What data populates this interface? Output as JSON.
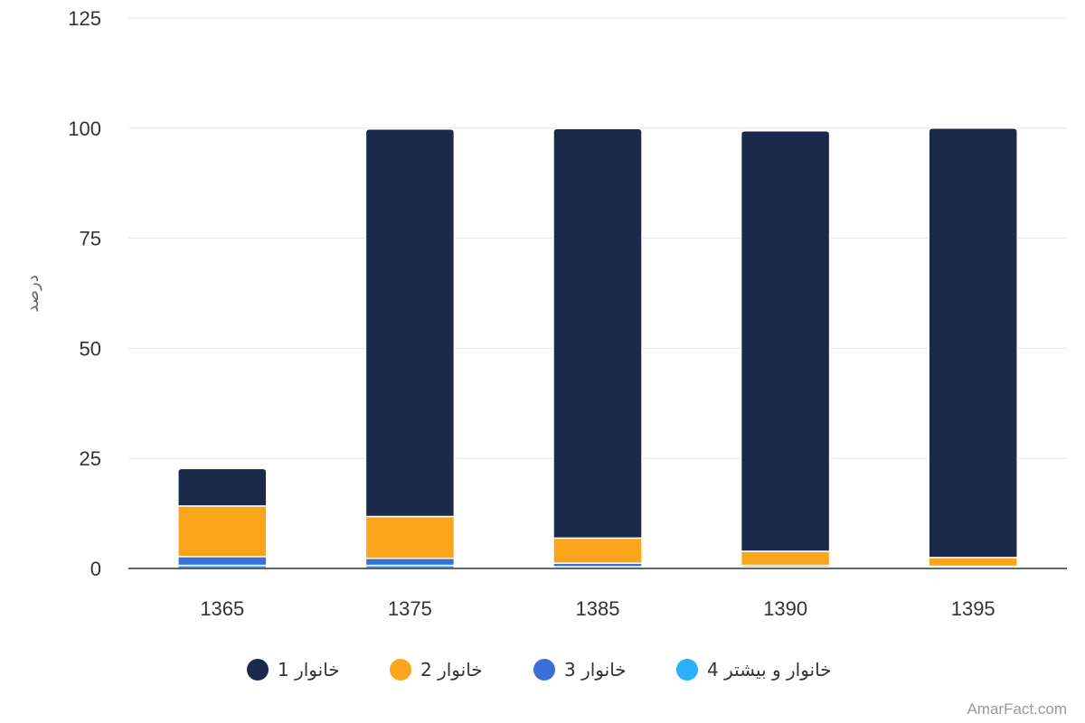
{
  "chart_data": {
    "type": "bar",
    "stacked": true,
    "categories": [
      "1365",
      "1375",
      "1385",
      "1390",
      "1395"
    ],
    "series": [
      {
        "name": "خانوار 1",
        "color": "#1b2a4b",
        "values": [
          8.5,
          88,
          93,
          95.5,
          97.5
        ]
      },
      {
        "name": "خانوار 2",
        "color": "#fba51a",
        "values": [
          11.5,
          9.5,
          5.7,
          3.2,
          2.0
        ]
      },
      {
        "name": "خانوار 3",
        "color": "#3a6fd8",
        "values": [
          2.0,
          1.6,
          0.8,
          0.4,
          0.3
        ]
      },
      {
        "name": "خانوار و بیشتر 4",
        "color": "#29b0f8",
        "values": [
          0.7,
          0.7,
          0.4,
          0.3,
          0.2
        ]
      }
    ],
    "ylabel": "درصد",
    "xlabel": "",
    "ylim": [
      0,
      125
    ],
    "yticks": [
      0,
      25,
      50,
      75,
      100,
      125
    ],
    "grid": true,
    "legend_position": "bottom"
  },
  "credit": "AmarFact.com"
}
